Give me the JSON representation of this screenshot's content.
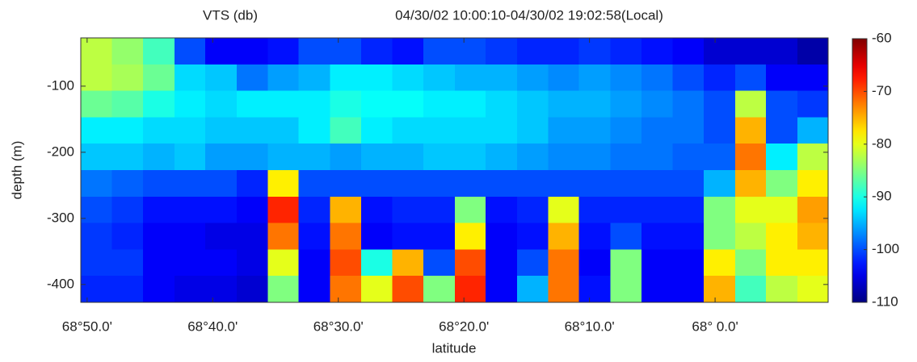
{
  "chart_data": {
    "type": "heatmap",
    "title": "VTS (db)",
    "subtitle": "04/30/02 10:00:10-04/30/02 19:02:58(Local)",
    "x_label": "latitude",
    "y_label": "depth (m)",
    "colormap": "jet",
    "x": [
      68.821,
      68.78,
      68.738,
      68.697,
      68.656,
      68.614,
      68.573,
      68.532,
      68.49,
      68.449,
      68.408,
      68.366,
      68.325,
      68.284,
      68.242,
      68.201,
      68.16,
      68.118,
      68.077,
      68.036,
      67.994,
      67.953,
      67.912,
      67.87
    ],
    "y": [
      -47,
      -87,
      -127,
      -167,
      -207,
      -247,
      -287,
      -327,
      -367,
      -407
    ],
    "z": [
      [
        -82,
        -82,
        -86,
        -92,
        -94,
        -98,
        -100,
        -101,
        -101,
        -102
      ],
      [
        -84,
        -83,
        -87,
        -92,
        -94,
        -99,
        -101,
        -102,
        -101,
        -102
      ],
      [
        -88,
        -86,
        -90,
        -93,
        -95,
        -100,
        -103,
        -104,
        -104,
        -104
      ],
      [
        -100,
        -93,
        -92,
        -93,
        -94,
        -100,
        -103,
        -104,
        -104,
        -105
      ],
      [
        -104,
        -94,
        -93,
        -94,
        -96,
        -100,
        -103,
        -105,
        -104,
        -105
      ],
      [
        -104,
        -98,
        -92,
        -94,
        -96,
        -102,
        -104,
        -105,
        -105,
        -106
      ],
      [
        -103,
        -96,
        -92,
        -94,
        -95,
        -78,
        -68,
        -72,
        -80,
        -85
      ],
      [
        -100,
        -95,
        -92,
        -92,
        -95,
        -100,
        -102,
        -103,
        -104,
        -104
      ],
      [
        -100,
        -92,
        -90,
        -88,
        -96,
        -100,
        -75,
        -72,
        -70,
        -72
      ],
      [
        -102,
        -92,
        -91,
        -92,
        -95,
        -100,
        -103,
        -104,
        -90,
        -80
      ],
      [
        -103,
        -93,
        -91,
        -93,
        -95,
        -100,
        -102,
        -103,
        -75,
        -70
      ],
      [
        -100,
        -94,
        -92,
        -93,
        -94,
        -100,
        -102,
        -103,
        -100,
        -85
      ],
      [
        -100,
        -95,
        -92,
        -93,
        -94,
        -100,
        -85,
        -78,
        -70,
        -68
      ],
      [
        -101,
        -95,
        -93,
        -93,
        -95,
        -100,
        -103,
        -104,
        -104,
        -104
      ],
      [
        -102,
        -96,
        -94,
        -94,
        -96,
        -100,
        -102,
        -103,
        -100,
        -95
      ],
      [
        -102,
        -97,
        -95,
        -96,
        -97,
        -100,
        -80,
        -75,
        -72,
        -72
      ],
      [
        -101,
        -96,
        -95,
        -96,
        -97,
        -100,
        -102,
        -103,
        -104,
        -103
      ],
      [
        -102,
        -97,
        -96,
        -97,
        -98,
        -100,
        -102,
        -100,
        -85,
        -85
      ],
      [
        -103,
        -98,
        -97,
        -98,
        -98,
        -100,
        -102,
        -103,
        -104,
        -104
      ],
      [
        -104,
        -100,
        -98,
        -98,
        -99,
        -100,
        -102,
        -103,
        -104,
        -104
      ],
      [
        -106,
        -102,
        -100,
        -100,
        -99,
        -95,
        -85,
        -85,
        -78,
        -75
      ],
      [
        -106,
        -100,
        -82,
        -75,
        -72,
        -75,
        -80,
        -82,
        -85,
        -88
      ],
      [
        -106,
        -104,
        -100,
        -100,
        -92,
        -85,
        -80,
        -78,
        -78,
        -82
      ],
      [
        -108,
        -104,
        -101,
        -95,
        -82,
        -78,
        -74,
        -75,
        -78,
        -80
      ]
    ],
    "xlim": [
      68.8417,
      67.85
    ],
    "xticks": [
      {
        "value": 68.8333,
        "label": "68°50.0'"
      },
      {
        "value": 68.6667,
        "label": "68°40.0'"
      },
      {
        "value": 68.5,
        "label": "68°30.0'"
      },
      {
        "value": 68.3333,
        "label": "68°20.0'"
      },
      {
        "value": 68.1667,
        "label": "68°10.0'"
      },
      {
        "value": 68.0,
        "label": "68° 0.0'"
      }
    ],
    "ylim": [
      -427,
      -27
    ],
    "yticks": [
      -100,
      -200,
      -300,
      -400
    ],
    "clim": [
      -110,
      -60
    ],
    "cticks": [
      -60,
      -70,
      -80,
      -90,
      -100,
      -110
    ]
  }
}
